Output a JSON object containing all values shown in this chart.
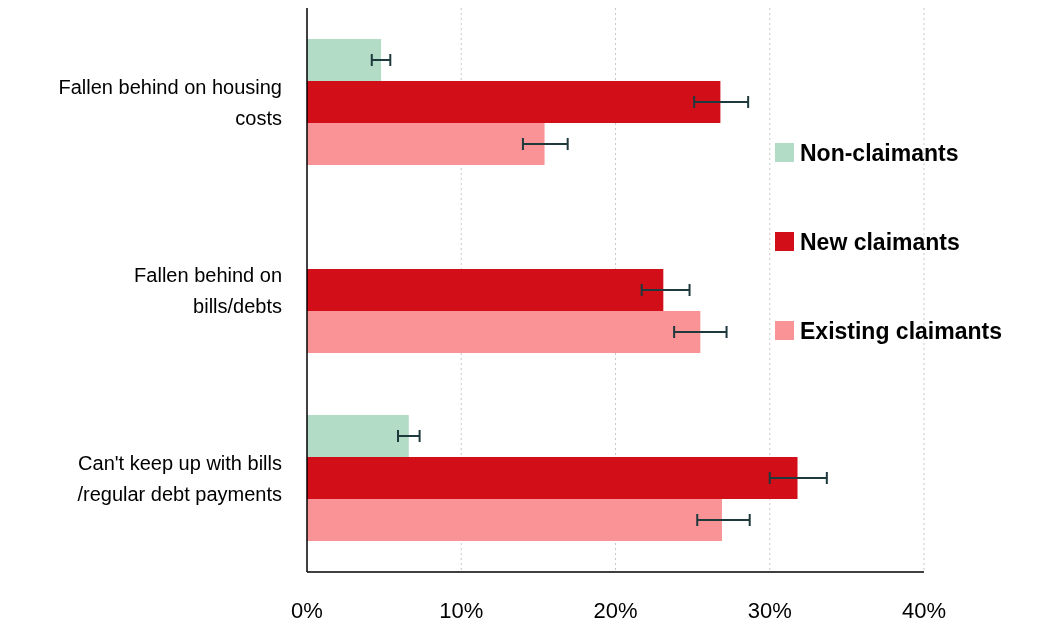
{
  "chart_data": {
    "type": "bar",
    "orientation": "horizontal",
    "categories": [
      "Fallen behind on housing costs",
      "Fallen behind on bills/debts",
      "Can't keep up with bills /regular debt payments"
    ],
    "series": [
      {
        "name": "Non-claimants",
        "color": "#b3dcc7",
        "values": [
          4.8,
          null,
          6.6
        ],
        "errors": [
          [
            4.2,
            5.4
          ],
          null,
          [
            5.9,
            7.3
          ]
        ]
      },
      {
        "name": "New claimants",
        "color": "#d20f19",
        "values": [
          26.8,
          23.1,
          31.8
        ],
        "errors": [
          [
            25.1,
            28.6
          ],
          [
            21.7,
            24.8
          ],
          [
            30.0,
            33.7
          ]
        ]
      },
      {
        "name": "Existing claimants",
        "color": "#f99395",
        "values": [
          15.4,
          25.5,
          26.9
        ],
        "errors": [
          [
            14.0,
            16.9
          ],
          [
            23.8,
            27.2
          ],
          [
            25.3,
            28.7
          ]
        ]
      }
    ],
    "xlim": [
      0,
      40
    ],
    "xticks": [
      {
        "value": 0,
        "label": "0%"
      },
      {
        "value": 10,
        "label": "10%"
      },
      {
        "value": 20,
        "label": "20%"
      },
      {
        "value": 30,
        "label": "30%"
      },
      {
        "value": 40,
        "label": "40%"
      }
    ],
    "grid": "x",
    "legend": "right"
  }
}
